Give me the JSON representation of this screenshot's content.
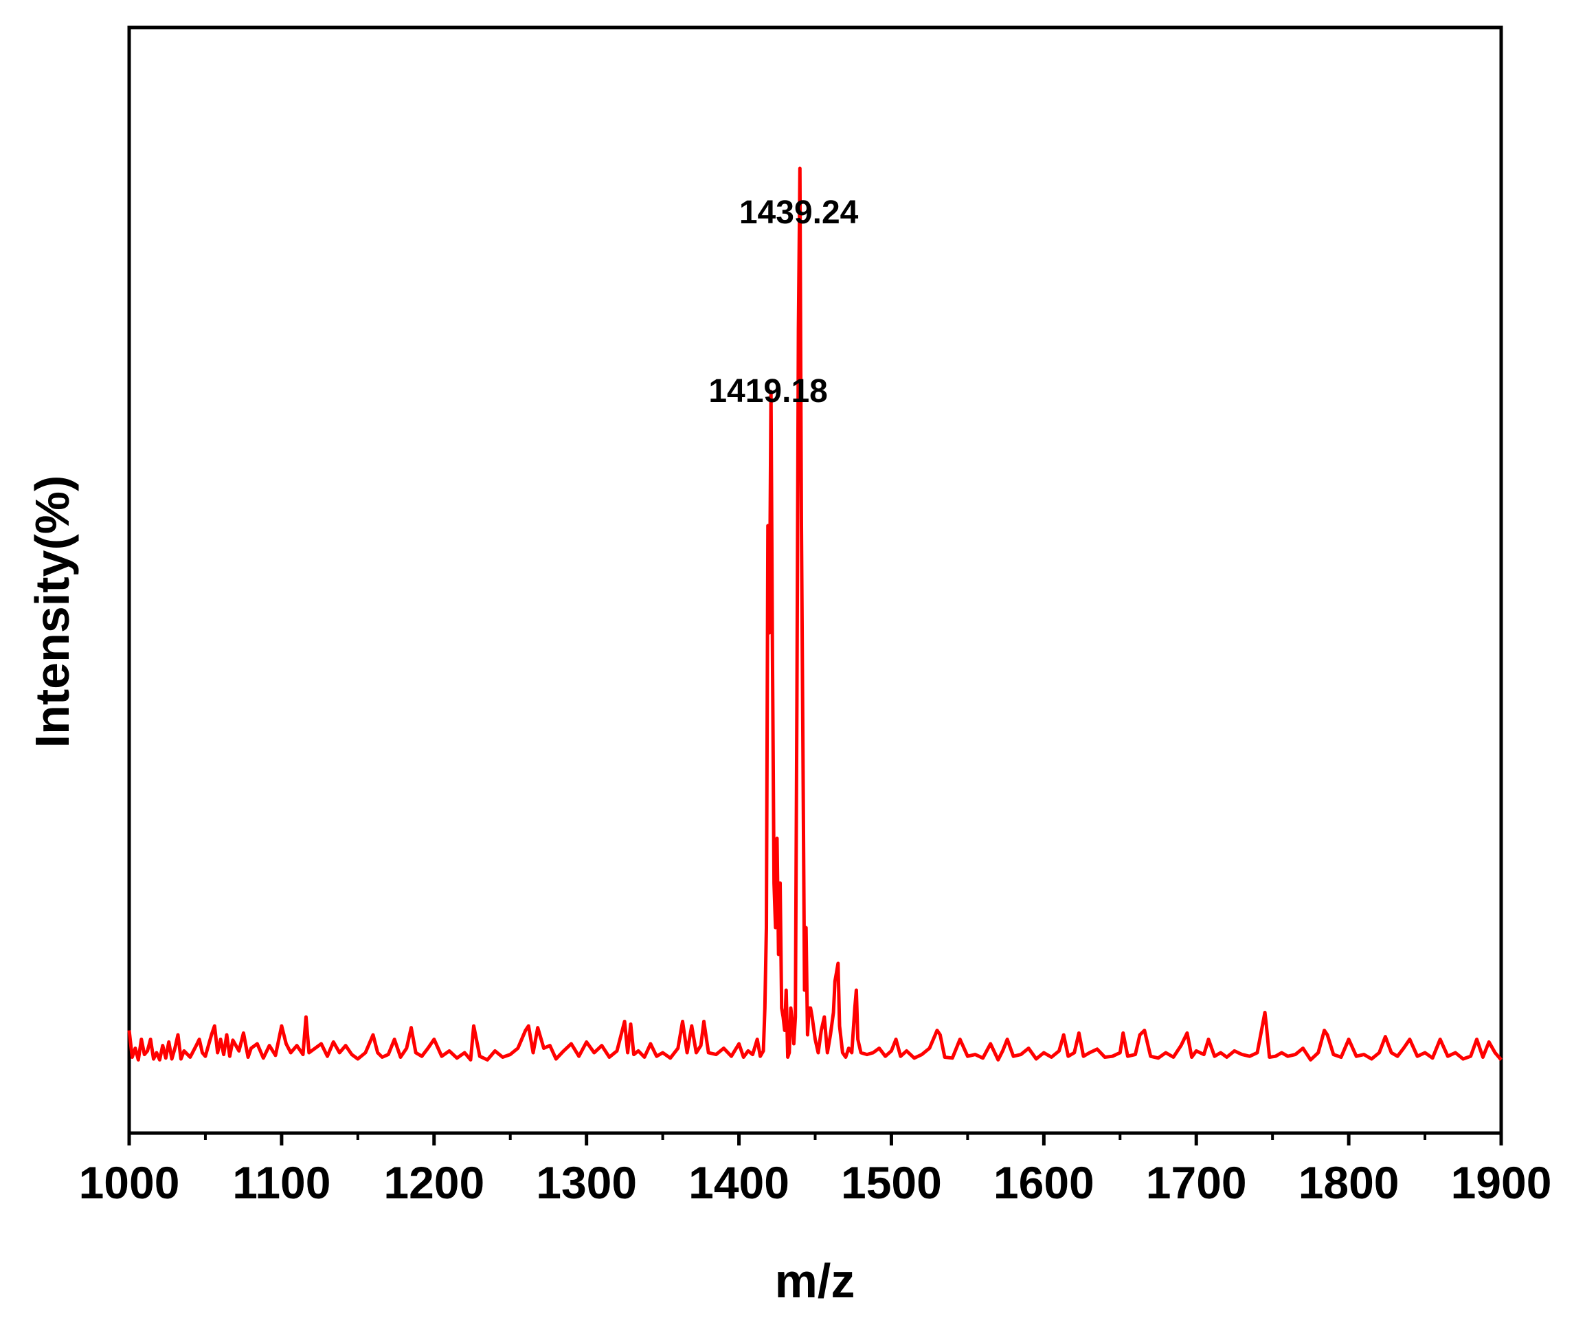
{
  "chart_data": {
    "type": "line",
    "title": "",
    "xlabel": "m/z",
    "ylabel": "Intensity(%)",
    "xlim": [
      1000,
      1900
    ],
    "ylim": [
      0,
      100
    ],
    "x_ticks": [
      "1000",
      "1100",
      "1200",
      "1300",
      "1400",
      "1500",
      "1600",
      "1700",
      "1800",
      "1900"
    ],
    "y_ticks": [],
    "grid": false,
    "legend": "none",
    "colors": {
      "series": "#ff0000",
      "axis": "#000000"
    },
    "peak_annotations": [
      {
        "text": "1419.18",
        "x": 1419.18,
        "y": 72
      },
      {
        "text": "1439.24",
        "x": 1439.24,
        "y": 92
      }
    ],
    "series": [
      {
        "x": [
          1000,
          1002,
          1004,
          1006,
          1008,
          1010,
          1012,
          1014,
          1016,
          1018,
          1020,
          1022,
          1024,
          1026,
          1028,
          1030,
          1032,
          1034,
          1036,
          1040,
          1044,
          1046,
          1048,
          1050,
          1054,
          1056,
          1058,
          1060,
          1062,
          1064,
          1066,
          1068,
          1072,
          1075,
          1078,
          1080,
          1084,
          1088,
          1092,
          1096,
          1100,
          1103,
          1106,
          1110,
          1114,
          1116,
          1118,
          1122,
          1126,
          1130,
          1134,
          1138,
          1142,
          1146,
          1150,
          1155,
          1160,
          1163,
          1166,
          1170,
          1174,
          1178,
          1182,
          1185,
          1188,
          1192,
          1196,
          1200,
          1205,
          1210,
          1215,
          1220,
          1224,
          1226,
          1230,
          1235,
          1240,
          1245,
          1250,
          1255,
          1260,
          1262,
          1265,
          1268,
          1272,
          1276,
          1280,
          1285,
          1290,
          1295,
          1300,
          1305,
          1310,
          1315,
          1320,
          1325,
          1327,
          1329,
          1331,
          1334,
          1338,
          1342,
          1346,
          1350,
          1355,
          1360,
          1363,
          1366,
          1369,
          1372,
          1375,
          1377,
          1380,
          1385,
          1390,
          1395,
          1400,
          1403,
          1406,
          1409,
          1412,
          1414,
          1416,
          1417,
          1418,
          1419,
          1420,
          1421,
          1422,
          1423,
          1424,
          1425,
          1426,
          1427,
          1428,
          1429,
          1430,
          1431,
          1432,
          1433,
          1434,
          1435,
          1436,
          1437,
          1438,
          1439,
          1440,
          1441,
          1442,
          1443,
          1444,
          1445,
          1446,
          1447,
          1448,
          1450,
          1452,
          1454,
          1456,
          1458,
          1460,
          1462,
          1463,
          1464,
          1465,
          1466,
          1468,
          1470,
          1472,
          1474,
          1476,
          1477,
          1478,
          1480,
          1484,
          1488,
          1492,
          1496,
          1500,
          1503,
          1506,
          1510,
          1515,
          1520,
          1525,
          1530,
          1532,
          1535,
          1540,
          1545,
          1550,
          1555,
          1560,
          1565,
          1570,
          1573,
          1576,
          1580,
          1585,
          1590,
          1595,
          1600,
          1605,
          1610,
          1613,
          1616,
          1620,
          1623,
          1626,
          1630,
          1635,
          1640,
          1645,
          1650,
          1652,
          1655,
          1660,
          1663,
          1666,
          1670,
          1675,
          1680,
          1685,
          1690,
          1694,
          1697,
          1700,
          1705,
          1708,
          1712,
          1716,
          1720,
          1725,
          1730,
          1735,
          1740,
          1745,
          1746,
          1748,
          1752,
          1756,
          1760,
          1765,
          1770,
          1775,
          1780,
          1784,
          1786,
          1790,
          1795,
          1800,
          1805,
          1810,
          1815,
          1820,
          1824,
          1828,
          1832,
          1836,
          1840,
          1845,
          1850,
          1855,
          1860,
          1865,
          1870,
          1875,
          1880,
          1884,
          1888,
          1892,
          1896,
          1900
        ],
        "y": [
          3.5,
          0.5,
          1.5,
          0.2,
          2.5,
          0.8,
          1.2,
          2.5,
          0.3,
          1.0,
          0.2,
          1.8,
          0.4,
          2.2,
          0.3,
          1.5,
          3.0,
          0.3,
          1.2,
          0.5,
          1.8,
          2.5,
          1.0,
          0.6,
          3.0,
          4.0,
          1.0,
          2.5,
          0.8,
          3.0,
          0.6,
          2.4,
          1.2,
          3.2,
          0.5,
          1.5,
          2.0,
          0.4,
          1.8,
          0.7,
          4.0,
          2.0,
          1.0,
          1.8,
          0.8,
          5.0,
          1.0,
          1.5,
          2.0,
          0.6,
          2.2,
          1.0,
          1.8,
          0.8,
          0.3,
          1.0,
          3.0,
          1.0,
          0.5,
          0.8,
          2.5,
          0.5,
          1.5,
          3.8,
          1.0,
          0.6,
          1.5,
          2.5,
          0.6,
          1.2,
          0.4,
          1.0,
          0.2,
          4.0,
          0.6,
          0.2,
          1.2,
          0.5,
          0.8,
          1.5,
          3.5,
          4.0,
          1.0,
          3.8,
          1.5,
          1.8,
          0.3,
          1.2,
          2.0,
          0.6,
          2.2,
          1.0,
          1.8,
          0.5,
          1.2,
          4.5,
          1.0,
          4.2,
          0.8,
          1.2,
          0.5,
          2.0,
          0.6,
          1.0,
          0.4,
          1.5,
          4.5,
          1.0,
          4.0,
          1.0,
          1.8,
          4.5,
          1.0,
          0.8,
          1.5,
          0.6,
          2.0,
          0.5,
          1.2,
          0.8,
          2.5,
          0.6,
          1.2,
          6.0,
          15.0,
          60.0,
          48.0,
          75.0,
          45.0,
          20.0,
          15.0,
          25.0,
          12.0,
          20.0,
          6.0,
          5.0,
          3.5,
          8.0,
          0.5,
          1.0,
          6.0,
          4.5,
          2.0,
          5.0,
          40.0,
          82.0,
          100.0,
          60.0,
          35.0,
          8.0,
          15.0,
          3.0,
          6.0,
          6.0,
          5.0,
          2.5,
          1.0,
          3.5,
          5.0,
          1.0,
          3.0,
          5.5,
          9.0,
          10.0,
          11.0,
          4.0,
          1.0,
          0.5,
          1.5,
          1.0,
          6.0,
          8.0,
          2.5,
          1.0,
          0.8,
          1.0,
          1.5,
          0.6,
          1.2,
          2.5,
          0.6,
          1.2,
          0.4,
          0.8,
          1.5,
          3.5,
          3.0,
          0.5,
          0.4,
          2.5,
          0.6,
          0.8,
          0.4,
          2.0,
          0.2,
          1.2,
          2.5,
          0.6,
          0.8,
          1.5,
          0.3,
          1.0,
          0.5,
          1.2,
          3.0,
          0.6,
          1.0,
          3.2,
          0.6,
          1.0,
          1.4,
          0.5,
          0.6,
          1.0,
          3.2,
          0.6,
          0.8,
          3.0,
          3.5,
          0.6,
          0.4,
          1.0,
          0.5,
          1.8,
          3.2,
          0.5,
          1.2,
          0.8,
          2.5,
          0.6,
          1.0,
          0.5,
          1.2,
          0.8,
          0.6,
          1.0,
          5.5,
          4.0,
          0.5,
          0.6,
          1.0,
          0.6,
          0.8,
          1.5,
          0.2,
          1.0,
          3.5,
          3.0,
          0.8,
          0.5,
          2.5,
          0.6,
          0.8,
          0.3,
          1.0,
          2.8,
          1.0,
          0.6,
          1.5,
          2.5,
          0.6,
          1.0,
          0.4,
          2.5,
          0.6,
          1.0,
          0.3,
          0.6,
          2.5,
          0.5,
          2.2,
          1.0,
          0.2
        ]
      }
    ]
  }
}
